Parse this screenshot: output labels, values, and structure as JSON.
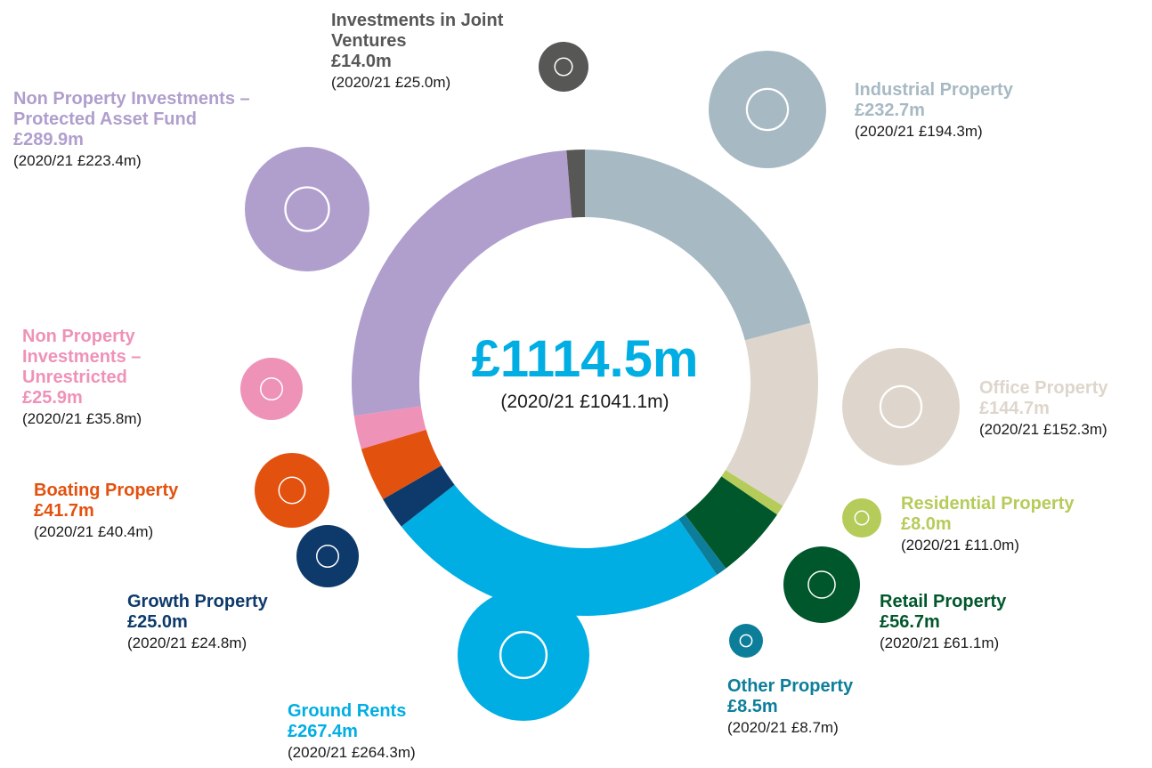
{
  "chart_data": {
    "type": "pie",
    "total_label": "£1114.5m",
    "total_prior_label": "(2020/21 £1041.1m)",
    "categories": [
      "Industrial Property",
      "Office Property",
      "Residential Property",
      "Retail Property",
      "Other Property",
      "Ground Rents",
      "Growth Property",
      "Boating Property",
      "Non Property Investments – Unrestricted",
      "Non Property Investments – Protected Asset Fund",
      "Investments in Joint Ventures"
    ],
    "values": [
      232.7,
      144.7,
      8.0,
      56.7,
      8.5,
      267.4,
      25.0,
      41.7,
      25.9,
      289.9,
      14.0
    ],
    "value_labels": [
      "£232.7m",
      "£144.7m",
      "£8.0m",
      "£56.7m",
      "£8.5m",
      "£267.4m",
      "£25.0m",
      "£41.7m",
      "£25.9m",
      "£289.9m",
      "£14.0m"
    ],
    "prior_labels": [
      "(2020/21 £194.3m)",
      "(2020/21 £152.3m)",
      "(2020/21 £11.0m)",
      "(2020/21 £61.1m)",
      "(2020/21 £8.7m)",
      "(2020/21 £264.3m)",
      "(2020/21 £24.8m)",
      "(2020/21 £40.4m)",
      "(2020/21 £35.8m)",
      "(2020/21 £223.4m)",
      "(2020/21 £25.0m)"
    ],
    "colors": [
      "#a7b9c3",
      "#ded6cc",
      "#b5cc5a",
      "#00572b",
      "#0d7e9a",
      "#00aee3",
      "#0e3a6b",
      "#e3510f",
      "#ef92b8",
      "#b09ecd",
      "#575756"
    ]
  }
}
